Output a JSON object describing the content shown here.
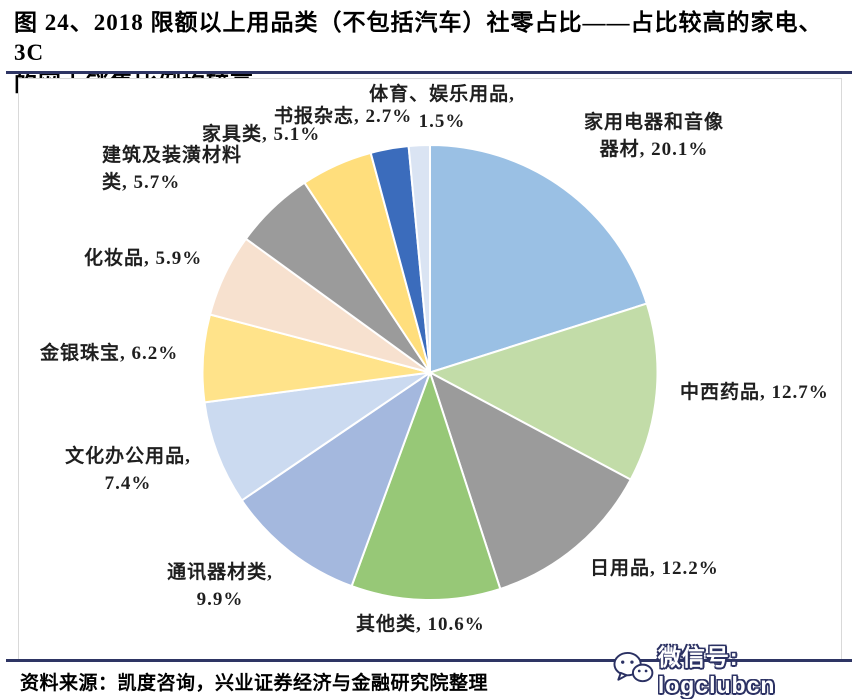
{
  "header": {
    "title": "图 24、2018 限额以上用品类（不包括汽车）社零占比——占比较高的家电、3C\n的网上销售比例均较高"
  },
  "source": {
    "text": "资料来源：凯度咨询，兴业证券经济与金融研究院整理"
  },
  "watermark": {
    "icon": "wechat-icon",
    "text": "微信号: logclubcn",
    "outline_color": "#2B3163"
  },
  "colors": {
    "rule": "#2E3564",
    "chart_border": "#D9D9D9",
    "label_text": "#1F1F1F",
    "slice_stroke": "#FFFFFF"
  },
  "chart_data": {
    "type": "pie",
    "title": "2018限额以上用品类（不包括汽车）社零占比",
    "unit": "%",
    "start_angle_deg": 0,
    "direction": "clockwise",
    "legend": "none",
    "labels_position": "outside",
    "slices": [
      {
        "name": "家用电器和音像器材",
        "value": 20.1,
        "color": "#9AC0E4",
        "label": "家用电器和音像\n器材, 20.1%"
      },
      {
        "name": "中西药品",
        "value": 12.7,
        "color": "#C2DCA8",
        "label": "中西药品, 12.7%"
      },
      {
        "name": "日用品",
        "value": 12.2,
        "color": "#9B9B9B",
        "label": "日用品, 12.2%"
      },
      {
        "name": "其他类",
        "value": 10.6,
        "color": "#97C877",
        "label": "其他类, 10.6%"
      },
      {
        "name": "通讯器材类",
        "value": 9.9,
        "color": "#A4B8DE",
        "label": "通讯器材类,\n9.9%"
      },
      {
        "name": "文化办公用品",
        "value": 7.4,
        "color": "#CBDAF0",
        "label": "文化办公用品,\n7.4%"
      },
      {
        "name": "金银珠宝",
        "value": 6.2,
        "color": "#FFE38A",
        "label": "金银珠宝, 6.2%"
      },
      {
        "name": "化妆品",
        "value": 5.9,
        "color": "#F7E1CF",
        "label": "化妆品, 5.9%"
      },
      {
        "name": "建筑及装潢材料类",
        "value": 5.7,
        "color": "#9B9B9B",
        "label": "建筑及装潢材料\n类, 5.7%"
      },
      {
        "name": "家具类",
        "value": 5.1,
        "color": "#FFDE7C",
        "label": "家具类, 5.1%"
      },
      {
        "name": "书报杂志",
        "value": 2.7,
        "color": "#3B6CBC",
        "label": "书报杂志, 2.7%"
      },
      {
        "name": "体育、娱乐用品",
        "value": 1.5,
        "color": "#DAE4F3",
        "label": "体育、娱乐用品,\n1.5%"
      }
    ]
  }
}
